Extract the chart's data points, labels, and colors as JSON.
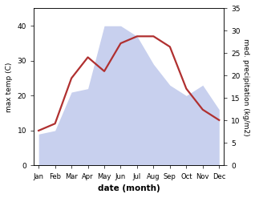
{
  "months": [
    "Jan",
    "Feb",
    "Mar",
    "Apr",
    "May",
    "Jun",
    "Jul",
    "Aug",
    "Sep",
    "Oct",
    "Nov",
    "Dec"
  ],
  "temperature": [
    10,
    12,
    25,
    31,
    27,
    35,
    37,
    37,
    34,
    22,
    16,
    13
  ],
  "precipitation": [
    9,
    10,
    21,
    22,
    40,
    40,
    37,
    29,
    23,
    20,
    23,
    16
  ],
  "temp_color": "#b03030",
  "precip_fill_color": "#c8d0ee",
  "precip_alpha": 1.0,
  "temp_ylim": [
    0,
    45
  ],
  "precip_ylim": [
    0,
    35
  ],
  "temp_yticks": [
    0,
    10,
    20,
    30,
    40
  ],
  "precip_yticks": [
    0,
    5,
    10,
    15,
    20,
    25,
    30,
    35
  ],
  "xlabel": "date (month)",
  "ylabel_left": "max temp (C)",
  "ylabel_right": "med. precipitation (kg/m2)",
  "line_width": 1.6,
  "bg_color": "#ffffff"
}
